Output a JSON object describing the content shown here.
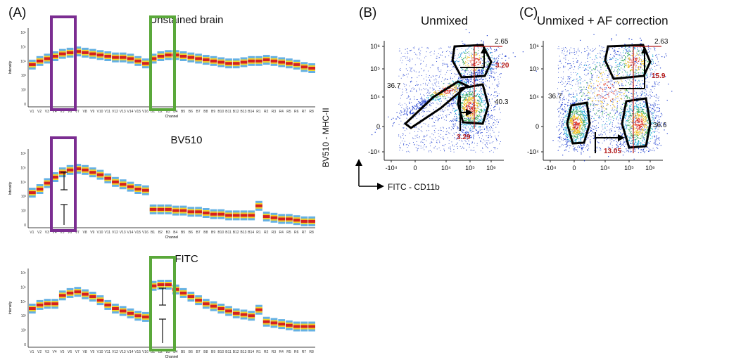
{
  "panels": {
    "a": {
      "letter": "(A)",
      "spectra": [
        {
          "title": "Unstained brain",
          "y_label": "Intensity",
          "x_label": "Channel",
          "box_color": "#7b2d91"
        },
        {
          "title": "BV510",
          "y_label": "Intensity",
          "x_label": "Channel",
          "box_color": "#7b2d91"
        },
        {
          "title": "FITC",
          "y_label": "Intensity",
          "x_label": "Channel",
          "box_color": "#5aa83a"
        }
      ],
      "channels": [
        "V1",
        "V2",
        "V3",
        "V4",
        "V5",
        "V6",
        "V7",
        "V8",
        "V9",
        "V10",
        "V11",
        "V12",
        "V13",
        "V14",
        "V15",
        "V16",
        "B1",
        "B2",
        "B3",
        "B4",
        "B5",
        "B6",
        "B7",
        "B8",
        "B9",
        "B10",
        "B11",
        "B12",
        "B13",
        "B14",
        "R1",
        "R2",
        "R3",
        "R4",
        "R5",
        "R6",
        "R7",
        "R8"
      ],
      "y_ticks": [
        "10⁶",
        "10⁵",
        "10⁴",
        "10³",
        "10²",
        "0"
      ]
    },
    "b": {
      "letter": "(B)",
      "title": "Unmixed",
      "y_label": "BV510 - MHC-II",
      "x_label": "FITC - CD11b",
      "gate_values": {
        "top_right": "2.65",
        "left": "36.7",
        "right": "40.3"
      },
      "shift_values": {
        "vertical": "3.20",
        "horizontal": "3.29"
      }
    },
    "c": {
      "letter": "(C)",
      "title": "Unmixed + AF correction",
      "gate_values": {
        "top_right": "2.63",
        "left": "36.7",
        "right": "36.6"
      },
      "shift_values": {
        "vertical": "15.9",
        "horizontal": "13.05"
      }
    },
    "flow_axes": {
      "y_ticks": [
        "10⁶",
        "10⁵",
        "10⁴",
        "0",
        "-10⁴"
      ],
      "x_ticks": [
        "-10⁴",
        "0",
        "10⁴",
        "10⁵",
        "10⁶"
      ]
    }
  },
  "colors": {
    "purple_box": "#7b2d91",
    "green_box": "#5aa83a",
    "stat_red": "#b31b1b",
    "spectrum_red": "#d42020",
    "spectrum_blue": "#4aa3df",
    "dot_blue": "#1f3fd0"
  },
  "spectra_data": [
    {
      "panel": "Unstained brain",
      "log_values": [
        3.3,
        3.6,
        3.8,
        4.0,
        4.2,
        4.3,
        4.4,
        4.3,
        4.2,
        4.1,
        4.0,
        3.9,
        3.9,
        3.8,
        3.6,
        3.4,
        3.8,
        4.0,
        4.1,
        4.1,
        4.0,
        3.9,
        3.8,
        3.7,
        3.6,
        3.5,
        3.4,
        3.4,
        3.5,
        3.6,
        3.6,
        3.7,
        3.6,
        3.5,
        3.4,
        3.3,
        3.1,
        3.0
      ]
    },
    {
      "panel": "BV510",
      "log_values": [
        2.7,
        3.0,
        3.5,
        4.0,
        4.4,
        4.6,
        4.7,
        4.6,
        4.4,
        4.2,
        3.9,
        3.6,
        3.4,
        3.2,
        3.0,
        2.9,
        1.3,
        1.3,
        1.3,
        1.2,
        1.2,
        1.1,
        1.1,
        1.0,
        0.9,
        0.9,
        0.8,
        0.8,
        0.8,
        0.8,
        1.6,
        0.7,
        0.6,
        0.5,
        0.5,
        0.4,
        0.3,
        0.3
      ]
    },
    {
      "panel": "FITC",
      "log_values": [
        3.0,
        3.3,
        3.4,
        3.4,
        4.1,
        4.3,
        4.4,
        4.2,
        4.0,
        3.7,
        3.3,
        3.0,
        2.8,
        2.6,
        2.4,
        2.3,
        4.9,
        5.0,
        5.0,
        4.6,
        4.3,
        4.0,
        3.7,
        3.4,
        3.2,
        3.0,
        2.8,
        2.6,
        2.5,
        2.4,
        2.9,
        1.9,
        1.8,
        1.7,
        1.6,
        1.5,
        1.5,
        1.5
      ]
    }
  ]
}
